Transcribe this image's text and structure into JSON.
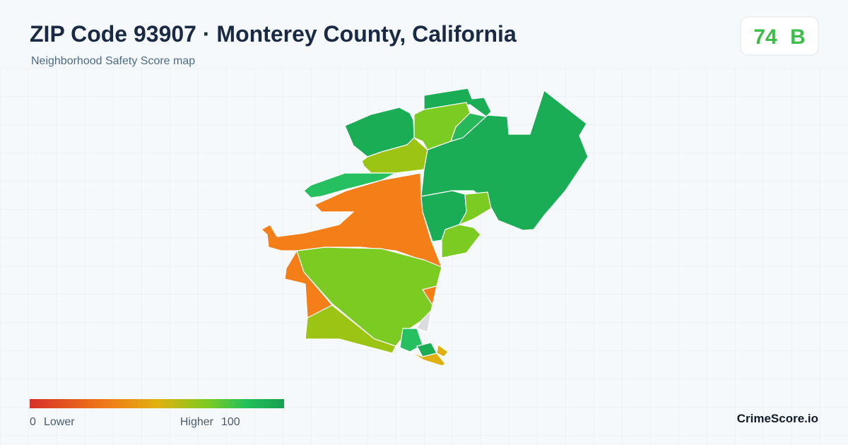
{
  "header": {
    "title": "ZIP Code 93907 · Monterey County, California",
    "subtitle": "Neighborhood Safety Score map"
  },
  "score": {
    "value": 74,
    "grade": "B"
  },
  "legend": {
    "min": 0,
    "min_label": "Lower",
    "max_label": "Higher",
    "max": 100
  },
  "brand": "CrimeScore.io"
}
